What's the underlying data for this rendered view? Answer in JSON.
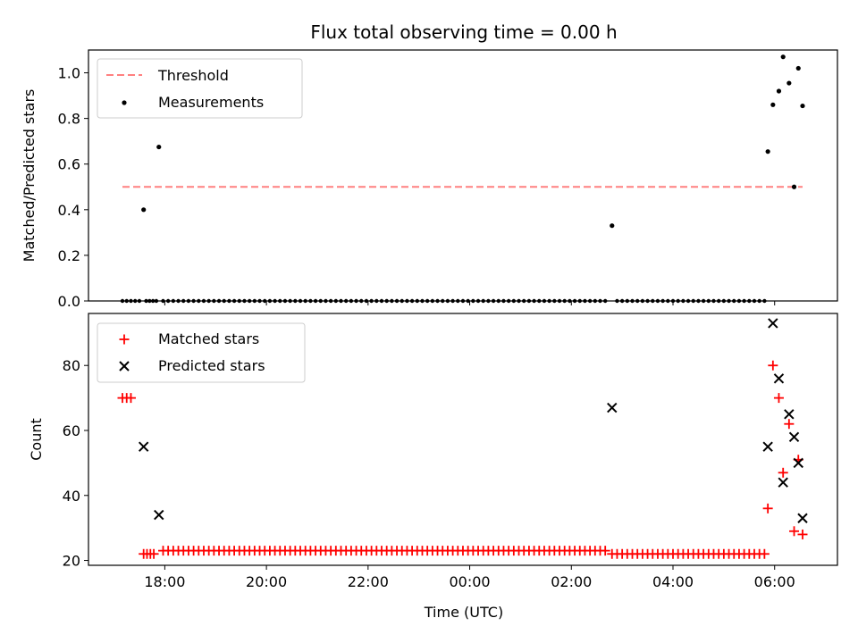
{
  "chart_data": {
    "type": "scatter",
    "title": "Flux total observing time = 0.00 h",
    "xlabel": "Time (UTC)",
    "x_ticks": [
      "18:00",
      "20:00",
      "22:00",
      "00:00",
      "02:00",
      "04:00",
      "06:00"
    ],
    "panels": [
      {
        "ylabel": "Matched/Predicted stars",
        "ylim": [
          0,
          1.1
        ],
        "y_ticks": [
          "0.0",
          "0.2",
          "0.4",
          "0.6",
          "0.8",
          "1.0"
        ],
        "legend": [
          "Threshold",
          "Measurements"
        ],
        "legend_position": "upper-left",
        "threshold": {
          "name": "Threshold",
          "value": 0.5,
          "color": "#ff8080"
        },
        "measurements": {
          "name": "Measurements",
          "color": "#000000",
          "points": [
            [
              "17:35",
              0.4
            ],
            [
              "17:53",
              0.675
            ],
            [
              "02:48",
              0.33
            ],
            [
              "05:52",
              0.655
            ],
            [
              "05:58",
              0.86
            ],
            [
              "06:05",
              0.92
            ],
            [
              "06:10",
              1.07
            ],
            [
              "06:17",
              0.955
            ],
            [
              "06:23",
              0.5
            ],
            [
              "06:28",
              1.02
            ],
            [
              "06:33",
              0.855
            ]
          ],
          "zero_runs": [
            {
              "start": "17:10",
              "end": "17:30",
              "step_min": 5
            },
            {
              "start": "17:38",
              "end": "17:50",
              "step_min": 4
            },
            {
              "start": "17:58",
              "end": "02:42",
              "step_min": 6
            },
            {
              "start": "02:54",
              "end": "05:48",
              "step_min": 6
            }
          ]
        }
      },
      {
        "ylabel": "Count",
        "ylim": [
          18.5,
          96
        ],
        "y_ticks": [
          "20",
          "40",
          "60",
          "80"
        ],
        "legend": [
          "Matched stars",
          "Predicted stars"
        ],
        "legend_position": "upper-left",
        "matched": {
          "name": "Matched stars",
          "color": "#ff0000",
          "points": [
            [
              "17:10",
              70
            ],
            [
              "17:15",
              70
            ],
            [
              "17:20",
              70
            ],
            [
              "05:52",
              36
            ],
            [
              "05:58",
              80
            ],
            [
              "06:05",
              70
            ],
            [
              "06:10",
              47
            ],
            [
              "06:17",
              62
            ],
            [
              "06:23",
              29
            ],
            [
              "06:28",
              51
            ],
            [
              "06:33",
              28
            ]
          ],
          "runs": [
            {
              "start": "17:35",
              "end": "17:50",
              "step_min": 4,
              "value": 22
            },
            {
              "start": "17:58",
              "end": "02:42",
              "step_min": 6,
              "value": 23
            },
            {
              "start": "02:48",
              "end": "05:48",
              "step_min": 6,
              "value": 22
            }
          ]
        },
        "predicted": {
          "name": "Predicted stars",
          "color": "#000000",
          "points": [
            [
              "17:35",
              55
            ],
            [
              "17:53",
              34
            ],
            [
              "02:48",
              67
            ],
            [
              "05:52",
              55
            ],
            [
              "05:58",
              93
            ],
            [
              "06:05",
              76
            ],
            [
              "06:10",
              44
            ],
            [
              "06:17",
              65
            ],
            [
              "06:23",
              58
            ],
            [
              "06:28",
              50
            ],
            [
              "06:33",
              33
            ]
          ]
        }
      }
    ]
  }
}
